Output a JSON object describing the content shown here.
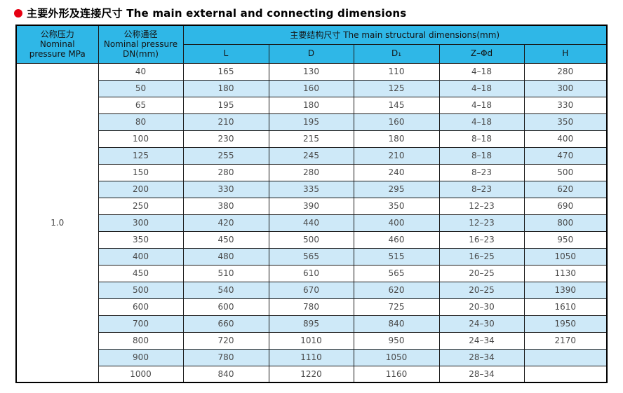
{
  "title": {
    "text": "主要外形及连接尺寸 The main external and connecting dimensions",
    "bullet_icon": "filled-red-circle"
  },
  "colors": {
    "header_bg": "#2FB7E7",
    "stripe_bg": "#CEE9F8",
    "bullet_red": "#E60012",
    "border": "#1A1A1A",
    "body_text": "#4A4A4A"
  },
  "table": {
    "pressure_header": [
      "公称压力",
      "Nominal",
      "pressure MPa"
    ],
    "dn_header": [
      "公称通径",
      "Nominal pressure",
      "DN(mm)"
    ],
    "group_header": "主要结构尺寸 The main structural dimensions(mm)",
    "sub_headers": [
      "L",
      "D",
      "D₁",
      "Z–Φd",
      "H"
    ],
    "pressure_value": "1.0",
    "rows": [
      [
        "40",
        "165",
        "130",
        "110",
        "4–18",
        "280"
      ],
      [
        "50",
        "180",
        "160",
        "125",
        "4–18",
        "300"
      ],
      [
        "65",
        "195",
        "180",
        "145",
        "4–18",
        "330"
      ],
      [
        "80",
        "210",
        "195",
        "160",
        "4–18",
        "350"
      ],
      [
        "100",
        "230",
        "215",
        "180",
        "8–18",
        "400"
      ],
      [
        "125",
        "255",
        "245",
        "210",
        "8–18",
        "470"
      ],
      [
        "150",
        "280",
        "280",
        "240",
        "8–23",
        "500"
      ],
      [
        "200",
        "330",
        "335",
        "295",
        "8–23",
        "620"
      ],
      [
        "250",
        "380",
        "390",
        "350",
        "12–23",
        "690"
      ],
      [
        "300",
        "420",
        "440",
        "400",
        "12–23",
        "800"
      ],
      [
        "350",
        "450",
        "500",
        "460",
        "16–23",
        "950"
      ],
      [
        "400",
        "480",
        "565",
        "515",
        "16–25",
        "1050"
      ],
      [
        "450",
        "510",
        "610",
        "565",
        "20–25",
        "1130"
      ],
      [
        "500",
        "540",
        "670",
        "620",
        "20–25",
        "1390"
      ],
      [
        "600",
        "600",
        "780",
        "725",
        "20–30",
        "1610"
      ],
      [
        "700",
        "660",
        "895",
        "840",
        "24–30",
        "1950"
      ],
      [
        "800",
        "720",
        "1010",
        "950",
        "24–34",
        "2170"
      ],
      [
        "900",
        "780",
        "1110",
        "1050",
        "28–34",
        ""
      ],
      [
        "1000",
        "840",
        "1220",
        "1160",
        "28–34",
        ""
      ]
    ]
  }
}
